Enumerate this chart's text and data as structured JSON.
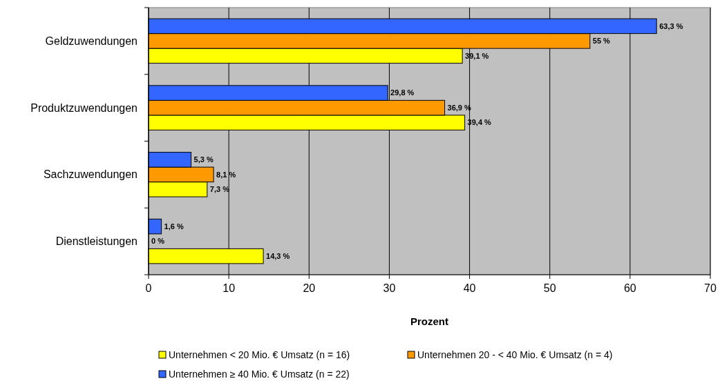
{
  "chart_data": {
    "type": "bar",
    "orientation": "horizontal",
    "categories": [
      "Geldzuwendungen",
      "Produktzuwendungen",
      "Sachzuwendungen",
      "Dienstleistungen"
    ],
    "xlabel": "Prozent",
    "xlim": [
      0,
      70
    ],
    "xticks": [
      0,
      10,
      20,
      30,
      40,
      50,
      60,
      70
    ],
    "grid": "x",
    "legend": "bottom",
    "series": [
      {
        "name": "Unternehmen < 20 Mio. € Umsatz (n = 16)",
        "color": "#ffff00",
        "values": [
          39.1,
          39.4,
          7.3,
          14.3
        ],
        "value_labels": [
          "39,1 %",
          "39,4 %",
          "7,3 %",
          "14,3 %"
        ]
      },
      {
        "name": "Unternehmen 20 - < 40 Mio. € Umsatz (n = 4)",
        "color": "#ff9900",
        "values": [
          55,
          36.9,
          8.1,
          0
        ],
        "value_labels": [
          "55 %",
          "36,9 %",
          "8,1 %",
          "0 %"
        ]
      },
      {
        "name": "Unternehmen ≥ 40 Mio. € Umsatz (n = 22)",
        "color": "#3366ff",
        "values": [
          63.3,
          29.8,
          5.3,
          1.6
        ],
        "value_labels": [
          "63,3 %",
          "29,8 %",
          "5,3 %",
          "1,6 %"
        ]
      }
    ]
  }
}
